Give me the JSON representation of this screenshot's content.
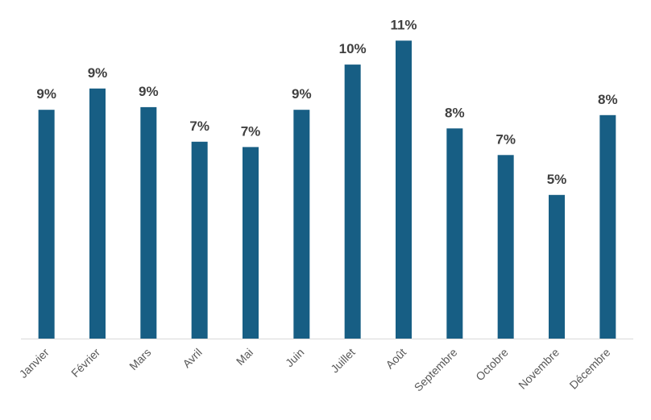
{
  "chart_data": {
    "type": "bar",
    "categories": [
      "Janvier",
      "Février",
      "Mars",
      "Avril",
      "Mai",
      "Juin",
      "Juillet",
      "Août",
      "Septembre",
      "Octobre",
      "Novembre",
      "Décembre"
    ],
    "values": [
      8.6,
      9.4,
      8.7,
      7.4,
      7.2,
      8.6,
      10.3,
      11.2,
      7.9,
      6.9,
      5.4,
      8.4
    ],
    "value_labels": [
      "9%",
      "9%",
      "9%",
      "7%",
      "7%",
      "9%",
      "10%",
      "11%",
      "8%",
      "7%",
      "5%",
      "8%"
    ],
    "color": "#175e84",
    "ylim": [
      0,
      12.6
    ]
  }
}
